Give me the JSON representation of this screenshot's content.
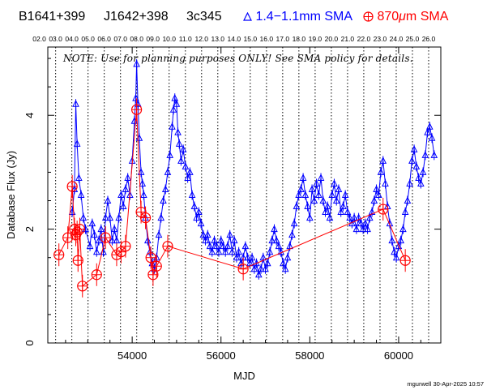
{
  "header": {
    "source_name": "B1641+399",
    "alias1": "J1642+398",
    "alias2": "3c345",
    "legend_blue": "1.4−1.1mm SMA",
    "legend_red_prefix": "870",
    "legend_red_mu": "μ",
    "legend_red_suffix": "m SMA"
  },
  "note": "NOTE: Use for planning purposes ONLY! See SMA policy for details.",
  "footer": "mgurwell 30-Apr-2025 10:57",
  "top_axis_labels": [
    "02.0",
    "03.0",
    "04.0",
    "05.0",
    "06.0",
    "07.0",
    "08.0",
    "09.0",
    "10.0",
    "11.0",
    "12.0",
    "13.0",
    "14.0",
    "15.0",
    "16.0",
    "17.0",
    "18.0",
    "19.0",
    "20.0",
    "21.0",
    "22.0",
    "23.0",
    "24.0",
    "25.0",
    "26.0"
  ],
  "colors": {
    "blue": "#0000ff",
    "red": "#ff0000",
    "axis": "#000000"
  },
  "chart_data": {
    "type": "scatter",
    "xlabel": "MJD",
    "ylabel": "Database Flux (Jy)",
    "xlim": [
      52100,
      60950
    ],
    "ylim": [
      0,
      5.2
    ],
    "x_ticks": [
      54000,
      56000,
      58000,
      60000
    ],
    "y_ticks": [
      0,
      2,
      4
    ],
    "year_markers_mjd": [
      52276,
      52641,
      53006,
      53371,
      53737,
      54102,
      54467,
      54832,
      55198,
      55563,
      55928,
      56293,
      56659,
      57024,
      57389,
      57754,
      58120,
      58485,
      58850,
      59215,
      59581,
      59946,
      60311,
      60676
    ],
    "series": [
      {
        "name": "1.4−1.1mm SMA",
        "color": "#0000ff",
        "marker": "triangle",
        "points": [
          [
            52650,
            2.3
          ],
          [
            52700,
            2.7
          ],
          [
            52730,
            4.2
          ],
          [
            52760,
            3.5
          ],
          [
            52800,
            2.9
          ],
          [
            52850,
            2.6
          ],
          [
            52900,
            2.2
          ],
          [
            52950,
            2.0
          ],
          [
            53050,
            1.7
          ],
          [
            53100,
            2.1
          ],
          [
            53150,
            1.9
          ],
          [
            53200,
            1.6
          ],
          [
            53250,
            1.8
          ],
          [
            53300,
            2.0
          ],
          [
            53350,
            1.6
          ],
          [
            53400,
            2.2
          ],
          [
            53450,
            2.5
          ],
          [
            53500,
            2.2
          ],
          [
            53550,
            1.8
          ],
          [
            53600,
            2.0
          ],
          [
            53650,
            1.8
          ],
          [
            53700,
            2.2
          ],
          [
            53750,
            2.6
          ],
          [
            53800,
            2.4
          ],
          [
            53850,
            2.7
          ],
          [
            53900,
            2.9
          ],
          [
            53950,
            2.6
          ],
          [
            54000,
            3.2
          ],
          [
            54050,
            3.9
          ],
          [
            54080,
            4.3
          ],
          [
            54100,
            4.9
          ],
          [
            54130,
            4.2
          ],
          [
            54160,
            3.6
          ],
          [
            54200,
            3.0
          ],
          [
            54230,
            2.8
          ],
          [
            54260,
            2.6
          ],
          [
            54300,
            2.2
          ],
          [
            54350,
            1.8
          ],
          [
            54400,
            1.6
          ],
          [
            54450,
            1.4
          ],
          [
            54500,
            1.3
          ],
          [
            54550,
            1.5
          ],
          [
            54600,
            1.9
          ],
          [
            54650,
            2.2
          ],
          [
            54700,
            2.5
          ],
          [
            54750,
            2.7
          ],
          [
            54800,
            3.0
          ],
          [
            54850,
            3.3
          ],
          [
            54900,
            3.8
          ],
          [
            54930,
            4.1
          ],
          [
            54960,
            4.3
          ],
          [
            55000,
            4.2
          ],
          [
            55030,
            3.7
          ],
          [
            55060,
            3.5
          ],
          [
            55100,
            3.2
          ],
          [
            55150,
            3.4
          ],
          [
            55200,
            3.1
          ],
          [
            55250,
            2.9
          ],
          [
            55300,
            3.0
          ],
          [
            55350,
            2.6
          ],
          [
            55400,
            2.4
          ],
          [
            55450,
            2.2
          ],
          [
            55500,
            2.3
          ],
          [
            55550,
            2.1
          ],
          [
            55600,
            1.9
          ],
          [
            55650,
            1.8
          ],
          [
            55700,
            1.9
          ],
          [
            55750,
            1.7
          ],
          [
            55800,
            1.6
          ],
          [
            55850,
            1.8
          ],
          [
            55900,
            1.7
          ],
          [
            55950,
            1.6
          ],
          [
            56000,
            1.8
          ],
          [
            56050,
            1.7
          ],
          [
            56100,
            1.6
          ],
          [
            56150,
            1.7
          ],
          [
            56200,
            1.9
          ],
          [
            56250,
            1.6
          ],
          [
            56300,
            1.8
          ],
          [
            56350,
            1.5
          ],
          [
            56400,
            1.6
          ],
          [
            56450,
            1.4
          ],
          [
            56500,
            1.5
          ],
          [
            56550,
            1.7
          ],
          [
            56600,
            1.5
          ],
          [
            56650,
            1.4
          ],
          [
            56700,
            1.5
          ],
          [
            56750,
            1.3
          ],
          [
            56800,
            1.4
          ],
          [
            56850,
            1.2
          ],
          [
            56900,
            1.3
          ],
          [
            56950,
            1.5
          ],
          [
            57000,
            1.3
          ],
          [
            57050,
            1.4
          ],
          [
            57100,
            1.6
          ],
          [
            57150,
            1.8
          ],
          [
            57200,
            2.0
          ],
          [
            57250,
            1.8
          ],
          [
            57300,
            1.7
          ],
          [
            57350,
            1.6
          ],
          [
            57400,
            1.4
          ],
          [
            57450,
            1.3
          ],
          [
            57500,
            1.5
          ],
          [
            57550,
            1.7
          ],
          [
            57600,
            1.9
          ],
          [
            57650,
            2.1
          ],
          [
            57700,
            2.4
          ],
          [
            57750,
            2.6
          ],
          [
            57800,
            2.7
          ],
          [
            57850,
            2.9
          ],
          [
            57900,
            2.6
          ],
          [
            57950,
            2.4
          ],
          [
            58000,
            2.2
          ],
          [
            58050,
            2.7
          ],
          [
            58100,
            2.5
          ],
          [
            58150,
            2.8
          ],
          [
            58200,
            2.6
          ],
          [
            58250,
            2.9
          ],
          [
            58300,
            2.5
          ],
          [
            58350,
            2.3
          ],
          [
            58400,
            2.4
          ],
          [
            58450,
            2.2
          ],
          [
            58500,
            2.6
          ],
          [
            58550,
            2.8
          ],
          [
            58600,
            2.5
          ],
          [
            58650,
            2.7
          ],
          [
            58700,
            2.3
          ],
          [
            58750,
            2.4
          ],
          [
            58800,
            2.6
          ],
          [
            58850,
            2.3
          ],
          [
            58900,
            2.2
          ],
          [
            58950,
            2.1
          ],
          [
            59000,
            2.2
          ],
          [
            59050,
            2.0
          ],
          [
            59100,
            2.2
          ],
          [
            59150,
            2.1
          ],
          [
            59200,
            2.0
          ],
          [
            59250,
            2.1
          ],
          [
            59300,
            2.0
          ],
          [
            59350,
            2.2
          ],
          [
            59400,
            2.3
          ],
          [
            59450,
            2.5
          ],
          [
            59500,
            2.7
          ],
          [
            59550,
            2.6
          ],
          [
            59600,
            3.0
          ],
          [
            59650,
            3.2
          ],
          [
            59700,
            2.8
          ],
          [
            59750,
            2.4
          ],
          [
            59800,
            2.1
          ],
          [
            59850,
            1.8
          ],
          [
            59900,
            1.6
          ],
          [
            59950,
            1.5
          ],
          [
            60000,
            1.7
          ],
          [
            60050,
            1.8
          ],
          [
            60100,
            2.0
          ],
          [
            60150,
            2.3
          ],
          [
            60200,
            2.5
          ],
          [
            60250,
            2.8
          ],
          [
            60300,
            3.2
          ],
          [
            60350,
            3.4
          ],
          [
            60400,
            3.1
          ],
          [
            60450,
            2.9
          ],
          [
            60500,
            2.8
          ],
          [
            60550,
            3.0
          ],
          [
            60600,
            3.3
          ],
          [
            60650,
            3.7
          ],
          [
            60700,
            3.8
          ],
          [
            60750,
            3.6
          ],
          [
            60800,
            3.3
          ]
        ]
      },
      {
        "name": "870μm SMA",
        "color": "#ff0000",
        "marker": "circle-cross",
        "points": [
          [
            52350,
            1.55
          ],
          [
            52550,
            1.85
          ],
          [
            52650,
            2.75
          ],
          [
            52700,
            2.0
          ],
          [
            52730,
            1.9
          ],
          [
            52760,
            1.95
          ],
          [
            52780,
            1.45
          ],
          [
            52820,
            2.0
          ],
          [
            52880,
            1.0
          ],
          [
            53200,
            1.2
          ],
          [
            53400,
            1.85
          ],
          [
            53650,
            1.55
          ],
          [
            53750,
            1.6
          ],
          [
            53850,
            1.7
          ],
          [
            54100,
            4.1
          ],
          [
            54200,
            2.3
          ],
          [
            54300,
            2.2
          ],
          [
            54420,
            1.5
          ],
          [
            54470,
            1.2
          ],
          [
            54550,
            1.35
          ],
          [
            54800,
            1.7
          ],
          [
            56500,
            1.3
          ],
          [
            59650,
            2.35
          ],
          [
            60150,
            1.45
          ]
        ]
      }
    ]
  }
}
